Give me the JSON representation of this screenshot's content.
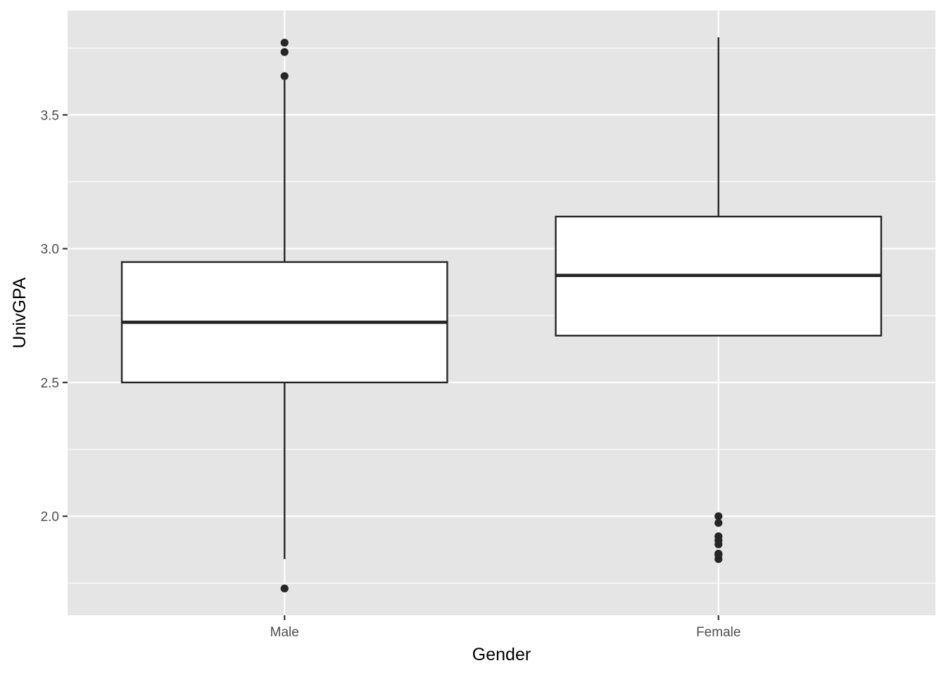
{
  "chart_data": {
    "type": "boxplot",
    "title": "",
    "xlabel": "Gender",
    "ylabel": "UnivGPA",
    "ylim": [
      1.63,
      3.89
    ],
    "yticks": [
      2.0,
      2.5,
      3.0,
      3.5
    ],
    "ytick_labels": [
      "2.0",
      "2.5",
      "3.0",
      "3.5"
    ],
    "grid": true,
    "legend": "none",
    "categories": [
      "Male",
      "Female"
    ],
    "boxes": [
      {
        "category": "Male",
        "lower_whisker": 1.84,
        "q1": 2.5,
        "median": 2.725,
        "q3": 2.95,
        "upper_whisker": 3.63,
        "outliers": [
          1.73,
          3.645,
          3.735,
          3.77
        ]
      },
      {
        "category": "Female",
        "lower_whisker": 2.675,
        "q1": 2.675,
        "median": 2.9,
        "q3": 3.12,
        "upper_whisker": 3.79,
        "outliers": [
          1.84,
          1.855,
          1.86,
          1.895,
          1.91,
          1.925,
          1.975,
          2.0
        ]
      }
    ],
    "colors": {
      "panel": "#e5e5e5",
      "grid": "#ffffff",
      "box_fill": "#ffffff",
      "box_line": "#262626",
      "tick_text": "#4d4d4d",
      "title_text": "#000000"
    }
  }
}
